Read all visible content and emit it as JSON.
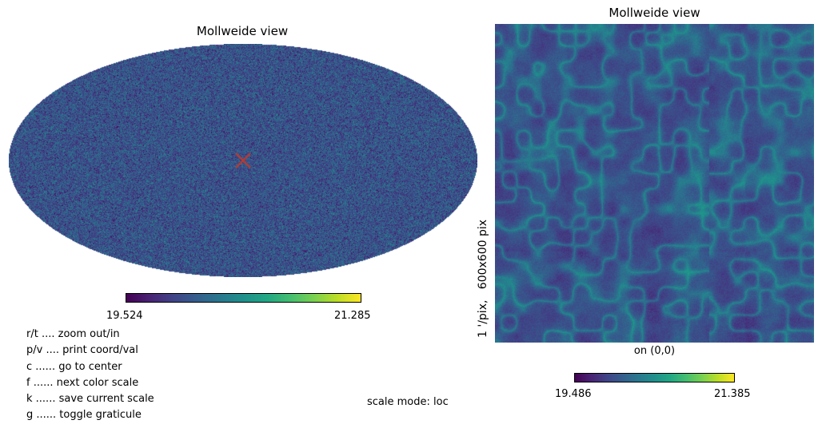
{
  "mollweide_panel": {
    "title": "Mollweide view",
    "colorbar": {
      "min_label": "19.524",
      "max_label": "21.285",
      "colormap": "viridis"
    },
    "marker_icon": "center-cross-icon",
    "marker_color": "#c0392b"
  },
  "zoom_panel": {
    "title": "Mollweide view",
    "xlabel": "on (0,0)",
    "ylabel": "1 '/pix,   600x600 pix",
    "colorbar": {
      "min_label": "19.486",
      "max_label": "21.385",
      "colormap": "viridis"
    }
  },
  "help": {
    "items": [
      "r/t .... zoom out/in",
      "p/v .... print coord/val",
      "c ...... go to center",
      "f ...... next color scale",
      "k ...... save current scale",
      "g ...... toggle graticule"
    ],
    "scale_mode": "scale mode: loc"
  }
}
